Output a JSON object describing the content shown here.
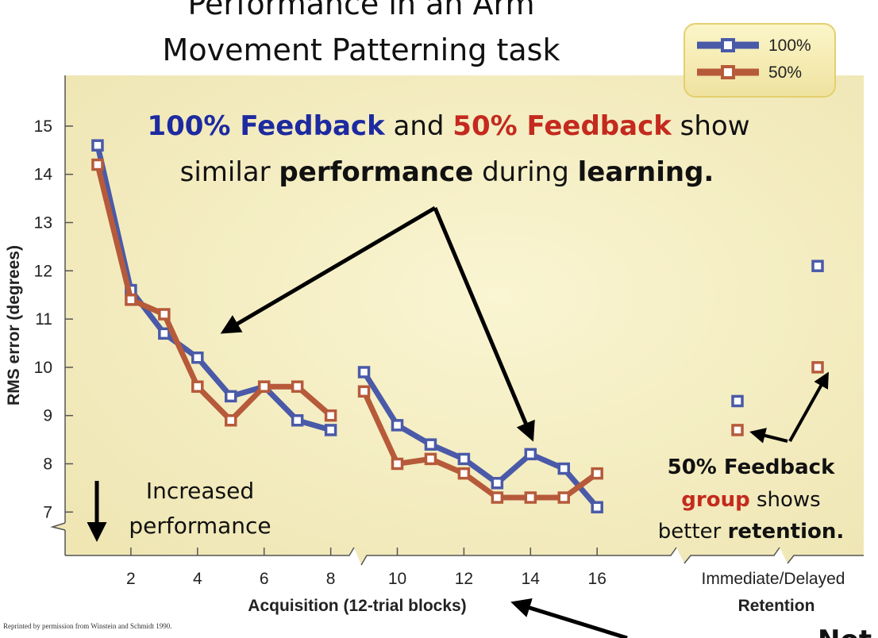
{
  "title_lines": [
    "Performance in an Arm",
    "Movement Patterning task"
  ],
  "colors": {
    "series_100": "#4a5aa8",
    "series_50": "#b65a3a",
    "panel_bg": "#f6f0c4",
    "blue_text": "#1d2aa0",
    "red_text": "#c42a1e"
  },
  "chart_data": {
    "type": "line",
    "ylabel": "RMS error (degrees)",
    "xlabel_acquisition": "Acquisition (12-trial blocks)",
    "xlabel_retention_top": "Immediate/Delayed",
    "xlabel_retention_bottom": "Retention",
    "ylim": [
      6.2,
      15.9
    ],
    "yticks": [
      7,
      8,
      9,
      10,
      11,
      12,
      13,
      14,
      15
    ],
    "xticks": [
      2,
      4,
      6,
      8,
      10,
      12,
      14,
      16
    ],
    "legend_position": "top-right",
    "series": [
      {
        "name": "100%",
        "segments": [
          [
            [
              1,
              14.6
            ],
            [
              2,
              11.6
            ],
            [
              3,
              10.7
            ],
            [
              4,
              10.2
            ],
            [
              5,
              9.4
            ],
            [
              6,
              9.6
            ],
            [
              7,
              8.9
            ],
            [
              8,
              8.7
            ]
          ],
          [
            [
              9,
              9.9
            ],
            [
              10,
              8.8
            ],
            [
              11,
              8.4
            ],
            [
              12,
              8.1
            ],
            [
              13,
              7.6
            ],
            [
              14,
              8.2
            ],
            [
              15,
              7.9
            ],
            [
              16,
              7.1
            ]
          ]
        ],
        "retention": {
          "immediate": 9.3,
          "delayed": 12.1
        }
      },
      {
        "name": "50%",
        "segments": [
          [
            [
              1,
              14.2
            ],
            [
              2,
              11.4
            ],
            [
              3,
              11.1
            ],
            [
              4,
              9.6
            ],
            [
              5,
              8.9
            ],
            [
              6,
              9.6
            ],
            [
              7,
              9.6
            ],
            [
              8,
              9.0
            ]
          ],
          [
            [
              9,
              9.5
            ],
            [
              10,
              8.0
            ],
            [
              11,
              8.1
            ],
            [
              12,
              7.8
            ],
            [
              13,
              7.3
            ],
            [
              14,
              7.3
            ],
            [
              15,
              7.3
            ],
            [
              16,
              7.8
            ]
          ]
        ],
        "retention": {
          "immediate": 8.7,
          "delayed": 10.0
        }
      }
    ]
  },
  "annotations": {
    "top_line1": {
      "p1": "100% Feedback",
      "p2": " and ",
      "p3": "50% Feedback",
      "p4": " show"
    },
    "top_line2": {
      "p1": "similar ",
      "p2": "performance",
      "p3": " during ",
      "p4": "learning."
    },
    "increased": [
      "Increased",
      "performance"
    ],
    "retention_note": {
      "line1": "50% Feedback",
      "line2a": "group",
      "line2b": " shows",
      "line3a": "better ",
      "line3b": "retention."
    },
    "credit": "Reprinted by permission from Winstein and Schmidt 1990.",
    "corner_fragment": "Not"
  }
}
